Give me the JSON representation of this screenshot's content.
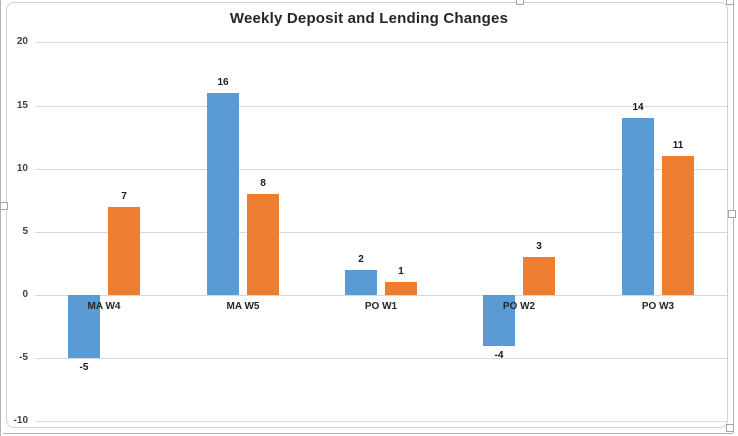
{
  "chart_data": {
    "type": "bar",
    "title": "Weekly Deposit and Lending Changes",
    "categories": [
      "MA W4",
      "MA W5",
      "PO W1",
      "PO W2",
      "PO W3"
    ],
    "series": [
      {
        "color": "#5B9BD5",
        "values": [
          -5,
          16,
          2,
          -4,
          14
        ]
      },
      {
        "color": "#ED7D31",
        "values": [
          7,
          8,
          1,
          3,
          11
        ]
      }
    ],
    "y_axis": {
      "ticks": [
        20,
        15,
        10,
        5,
        0,
        -5,
        -10
      ],
      "ylim": [
        -10,
        20
      ]
    },
    "data_labels": [
      [
        "-5",
        "16",
        "2",
        "-4",
        "14"
      ],
      [
        "7",
        "8",
        "1",
        "3",
        "11"
      ]
    ],
    "legend": "none",
    "grid": true,
    "colors": {
      "gridline": "#d9d9d9",
      "axis_text": "#404040",
      "label_text": "#1a1a1a",
      "title_text": "#262626",
      "frame_border": "#d2d0ce"
    }
  }
}
